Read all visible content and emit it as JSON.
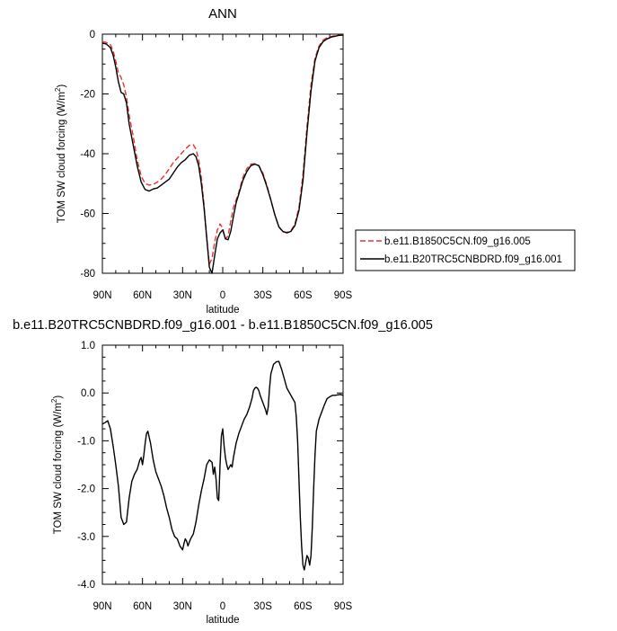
{
  "chart_data": [
    {
      "type": "line",
      "title": "ANN",
      "xlabel": "latitude",
      "ylabel": "TOM SW cloud forcing (W/m",
      "ylabel_sup": "2",
      "ylabel_close": ")",
      "xlim": [
        90,
        -90
      ],
      "ylim": [
        -80,
        0
      ],
      "xticks": [
        {
          "value": 90,
          "label": "90N"
        },
        {
          "value": 60,
          "label": "60N"
        },
        {
          "value": 30,
          "label": "30N"
        },
        {
          "value": 0,
          "label": "0"
        },
        {
          "value": -30,
          "label": "30S"
        },
        {
          "value": -60,
          "label": "60S"
        },
        {
          "value": -90,
          "label": "90S"
        }
      ],
      "yticks": [
        {
          "value": 0,
          "label": "0"
        },
        {
          "value": -20,
          "label": "-20"
        },
        {
          "value": -40,
          "label": "-40"
        },
        {
          "value": -60,
          "label": "-60"
        },
        {
          "value": -80,
          "label": "-80"
        }
      ],
      "legend_position": "right",
      "series": [
        {
          "name": "b.e11.B1850C5CN.f09_g16.005",
          "color": "#e8332f",
          "dash": "dashed",
          "x": [
            90,
            87,
            84,
            82,
            80,
            78,
            76,
            74,
            72,
            70,
            67,
            64,
            61,
            58,
            55,
            52,
            49,
            46,
            43,
            40,
            37,
            34,
            31,
            28,
            25,
            22,
            20,
            18,
            16,
            14,
            12,
            10,
            8,
            6,
            4,
            2,
            0,
            -2,
            -4,
            -6,
            -8,
            -10,
            -12,
            -15,
            -18,
            -21,
            -24,
            -27,
            -30,
            -33,
            -36,
            -39,
            -42,
            -45,
            -48,
            -51,
            -54,
            -57,
            -60,
            -63,
            -66,
            -69,
            -72,
            -75,
            -78,
            -81,
            -84,
            -87,
            -90
          ],
          "y": [
            -2.5,
            -2.8,
            -3.5,
            -5.5,
            -9,
            -13,
            -14.5,
            -17,
            -21,
            -27,
            -34,
            -42,
            -47.5,
            -50,
            -50.5,
            -50.3,
            -49.5,
            -48.5,
            -47,
            -45,
            -43,
            -41.5,
            -40,
            -38.5,
            -37.2,
            -37,
            -38.5,
            -42,
            -48,
            -57,
            -68,
            -77,
            -75,
            -69.5,
            -65.5,
            -63.5,
            -65,
            -68.5,
            -67.5,
            -62.5,
            -58,
            -55.5,
            -53,
            -48,
            -45,
            -43.5,
            -43.3,
            -44,
            -46.5,
            -50.5,
            -55.5,
            -60.5,
            -64.5,
            -66.2,
            -66.3,
            -65.8,
            -63.5,
            -58,
            -47,
            -31,
            -17,
            -8,
            -4,
            -2,
            -1.2,
            -0.8,
            -0.5,
            -0.3,
            -0.2
          ]
        },
        {
          "name": "b.e11.B20TRC5CNBDRD.f09_g16.001",
          "color": "#000000",
          "dash": "solid",
          "x": [
            90,
            87,
            84,
            82,
            80,
            78,
            76,
            74,
            72,
            70,
            67,
            64,
            61,
            58,
            55,
            52,
            49,
            46,
            43,
            40,
            37,
            34,
            31,
            28,
            25,
            22,
            20,
            18,
            16,
            14,
            12,
            10,
            8,
            6,
            4,
            2,
            0,
            -2,
            -4,
            -6,
            -8,
            -10,
            -12,
            -15,
            -18,
            -21,
            -24,
            -27,
            -30,
            -33,
            -36,
            -39,
            -42,
            -45,
            -48,
            -51,
            -54,
            -57,
            -60,
            -63,
            -66,
            -69,
            -72,
            -75,
            -78,
            -81,
            -84,
            -87,
            -90
          ],
          "y": [
            -3,
            -3.3,
            -4.5,
            -7,
            -11,
            -16,
            -19.5,
            -20,
            -23,
            -30,
            -37,
            -44,
            -49.5,
            -52,
            -52.5,
            -51.8,
            -51.5,
            -50.5,
            -49.5,
            -48.5,
            -46.5,
            -44.5,
            -43,
            -42,
            -40.5,
            -40,
            -41,
            -44,
            -50,
            -58,
            -68,
            -78,
            -80,
            -74,
            -68.5,
            -66.5,
            -65.5,
            -68.5,
            -68.8,
            -66,
            -61,
            -56.5,
            -53.5,
            -49,
            -46,
            -44,
            -43.5,
            -44,
            -47,
            -51,
            -55.5,
            -60.5,
            -64.5,
            -66,
            -66.5,
            -66,
            -64,
            -59,
            -49,
            -33,
            -19,
            -9,
            -4.5,
            -2.5,
            -1.6,
            -1,
            -0.7,
            -0.4,
            -0.3
          ]
        }
      ]
    },
    {
      "type": "line",
      "title": "b.e11.B20TRC5CNBDRD.f09_g16.001 - b.e11.B1850C5CN.f09_g16.005",
      "xlabel": "latitude",
      "ylabel": "TOM SW cloud forcing (W/m",
      "ylabel_sup": "2",
      "ylabel_close": ")",
      "xlim": [
        90,
        -90
      ],
      "ylim": [
        -4.0,
        1.0
      ],
      "xticks": [
        {
          "value": 90,
          "label": "90N"
        },
        {
          "value": 60,
          "label": "60N"
        },
        {
          "value": 30,
          "label": "30N"
        },
        {
          "value": 0,
          "label": "0"
        },
        {
          "value": -30,
          "label": "30S"
        },
        {
          "value": -60,
          "label": "60S"
        },
        {
          "value": -90,
          "label": "90S"
        }
      ],
      "yticks": [
        {
          "value": 1.0,
          "label": "1.0"
        },
        {
          "value": 0.0,
          "label": "0.0"
        },
        {
          "value": -1.0,
          "label": "-1.0"
        },
        {
          "value": -2.0,
          "label": "-2.0"
        },
        {
          "value": -3.0,
          "label": "-3.0"
        },
        {
          "value": -4.0,
          "label": "-4.0"
        }
      ],
      "series": [
        {
          "color": "#000000",
          "dash": "solid",
          "x": [
            90,
            88,
            86,
            84,
            82,
            80,
            78,
            76,
            74,
            72,
            70,
            68,
            66,
            64,
            62,
            61,
            60,
            59,
            58,
            57,
            56,
            54,
            52,
            50,
            48,
            46,
            44,
            42,
            40,
            38,
            36,
            34,
            32,
            30,
            29,
            28,
            27,
            26,
            25,
            24,
            22,
            20,
            18,
            16,
            14,
            12,
            10,
            8,
            7,
            6,
            5,
            4,
            3,
            2,
            1,
            0,
            -1,
            -2,
            -3,
            -4,
            -5,
            -6,
            -7,
            -8,
            -10,
            -12,
            -14,
            -16,
            -18,
            -20,
            -22,
            -23,
            -24,
            -25,
            -26,
            -27,
            -28,
            -30,
            -32,
            -33,
            -34,
            -35,
            -36,
            -38,
            -40,
            -42,
            -44,
            -46,
            -48,
            -50,
            -52,
            -54,
            -55,
            -56,
            -57,
            -58,
            -59,
            -60,
            -61,
            -62,
            -63,
            -64,
            -65,
            -66,
            -67,
            -68,
            -69,
            -70,
            -72,
            -74,
            -76,
            -78,
            -80,
            -82,
            -84,
            -86,
            -88,
            -90
          ],
          "y": [
            -0.65,
            -0.62,
            -0.58,
            -0.75,
            -1.1,
            -1.5,
            -1.95,
            -2.6,
            -2.75,
            -2.7,
            -2.2,
            -1.85,
            -1.7,
            -1.6,
            -1.4,
            -1.35,
            -1.5,
            -1.3,
            -1.05,
            -0.85,
            -0.8,
            -1.05,
            -1.4,
            -1.65,
            -1.8,
            -1.95,
            -2.15,
            -2.4,
            -2.6,
            -2.85,
            -3.0,
            -3.05,
            -3.2,
            -3.28,
            -3.15,
            -3.05,
            -3.1,
            -3.2,
            -3.12,
            -3.05,
            -2.95,
            -2.7,
            -2.35,
            -2.05,
            -1.8,
            -1.5,
            -1.4,
            -1.45,
            -1.7,
            -1.55,
            -1.8,
            -2.2,
            -2.25,
            -1.5,
            -0.9,
            -0.75,
            -1.1,
            -1.35,
            -1.5,
            -1.6,
            -1.55,
            -1.5,
            -1.55,
            -1.35,
            -1.05,
            -0.85,
            -0.7,
            -0.55,
            -0.45,
            -0.3,
            -0.1,
            0.05,
            0.1,
            0.12,
            0.1,
            0.05,
            -0.05,
            -0.2,
            -0.35,
            -0.45,
            -0.3,
            0.1,
            0.4,
            0.6,
            0.65,
            0.66,
            0.5,
            0.3,
            0.1,
            0.0,
            -0.1,
            -0.2,
            -0.5,
            -1.0,
            -1.8,
            -2.6,
            -3.2,
            -3.6,
            -3.7,
            -3.55,
            -3.4,
            -3.45,
            -3.6,
            -3.4,
            -2.8,
            -2.0,
            -1.3,
            -0.8,
            -0.55,
            -0.4,
            -0.25,
            -0.12,
            -0.08,
            -0.05,
            -0.05,
            -0.04,
            -0.03,
            -0.05
          ]
        }
      ]
    }
  ]
}
